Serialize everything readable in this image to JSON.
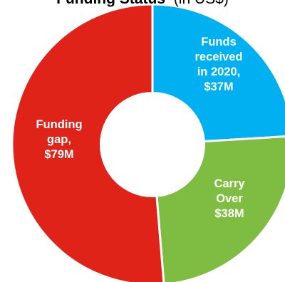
{
  "chart_data": {
    "type": "pie",
    "variant": "donut",
    "title": "Funding Status",
    "subtitle": "(in US$)",
    "slices": [
      {
        "key": "received",
        "value": 37,
        "color": "#00b0f0",
        "label_lines": [
          "Funds",
          "received",
          "in 2020,",
          "$37M"
        ]
      },
      {
        "key": "carry",
        "value": 38,
        "color": "#7ebd41",
        "label_lines": [
          "Carry",
          "Over",
          "$38M"
        ]
      },
      {
        "key": "gap",
        "value": 79,
        "color": "#e02319",
        "label_lines": [
          "Funding",
          "gap,",
          "$79M"
        ]
      }
    ],
    "start_at": "12 o'clock",
    "direction": "clockwise",
    "legend": "none"
  }
}
